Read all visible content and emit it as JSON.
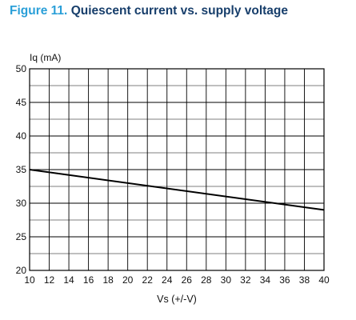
{
  "figure": {
    "number": "Figure 11.",
    "caption": "Quiescent current vs. supply voltage"
  },
  "chart_data": {
    "type": "line",
    "title": "Quiescent current vs. supply voltage",
    "ylabel": "Iq (mA)",
    "xlabel": "Vs (+/-V)",
    "xlim": [
      10,
      40
    ],
    "ylim": [
      20,
      50
    ],
    "x_ticks": [
      "10",
      "12",
      "14",
      "16",
      "18",
      "20",
      "22",
      "24",
      "26",
      "28",
      "30",
      "32",
      "34",
      "36",
      "38",
      "40"
    ],
    "y_ticks": [
      "20",
      "25",
      "30",
      "35",
      "40",
      "45",
      "50"
    ],
    "x_tick_values": [
      10,
      12,
      14,
      16,
      18,
      20,
      22,
      24,
      26,
      28,
      30,
      32,
      34,
      36,
      38,
      40
    ],
    "y_tick_values": [
      20,
      25,
      30,
      35,
      40,
      45,
      50
    ],
    "grid": true,
    "series": [
      {
        "x": [
          10,
          40
        ],
        "y": [
          35,
          29
        ],
        "color": "#000000"
      }
    ]
  }
}
